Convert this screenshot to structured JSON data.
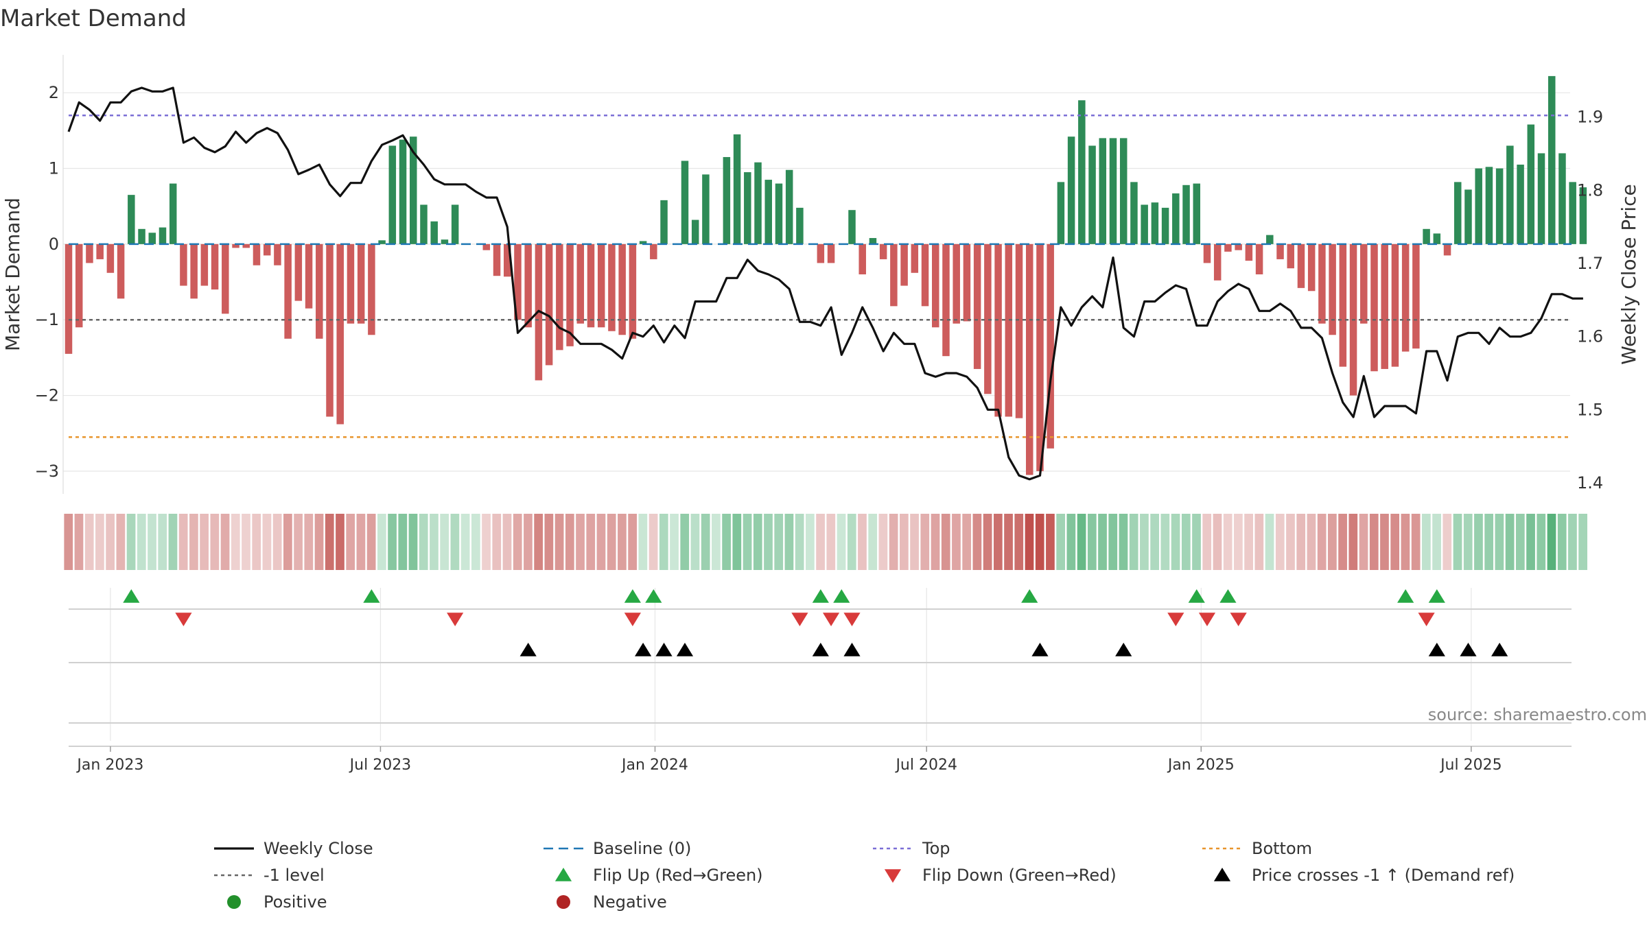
{
  "chart_data": {
    "type": "bar",
    "title": "Market Demand",
    "ylabel_left": "Market Demand",
    "ylabel_right": "Weekly Close Price",
    "source": "source: sharemaestro.com",
    "ylim_left": [
      -3.3,
      2.5
    ],
    "ylim_right": [
      1.385,
      1.985
    ],
    "yticks_left": [
      2,
      1,
      0,
      -1,
      -2,
      -3
    ],
    "ytick_labels_left": [
      "2",
      "1",
      "0",
      "−1",
      "−2",
      "−3"
    ],
    "yticks_right": [
      1.9,
      1.8,
      1.7,
      1.6,
      1.5,
      1.4
    ],
    "ytick_labels_right": [
      "1.9",
      "1.8",
      "1.7",
      "1.6",
      "1.5",
      "1.4"
    ],
    "x_start": "2022-12-04",
    "x_step_days": 7,
    "date_ticks": [
      {
        "label": "Jan 2023",
        "date": "2023-01-01"
      },
      {
        "label": "Jul 2023",
        "date": "2023-07-01"
      },
      {
        "label": "Jan 2024",
        "date": "2024-01-01"
      },
      {
        "label": "Jul 2024",
        "date": "2024-07-01"
      },
      {
        "label": "Jan 2025",
        "date": "2025-01-01"
      },
      {
        "label": "Jul 2025",
        "date": "2025-07-01"
      }
    ],
    "reference_lines": {
      "top": 1.7,
      "bottom": -2.55,
      "minus_one": -1,
      "baseline": 0
    },
    "demand": [
      -1.45,
      -1.1,
      -0.25,
      -0.2,
      -0.38,
      -0.72,
      0.65,
      0.2,
      0.15,
      0.22,
      0.8,
      -0.55,
      -0.72,
      -0.55,
      -0.6,
      -0.92,
      -0.05,
      -0.05,
      -0.28,
      -0.15,
      -0.28,
      -1.25,
      -0.75,
      -0.85,
      -1.25,
      -2.28,
      -2.38,
      -1.05,
      -1.05,
      -1.2,
      0.05,
      1.3,
      1.38,
      1.42,
      0.52,
      0.3,
      0.06,
      0.52,
      0,
      0,
      -0.08,
      -0.42,
      -0.43,
      -1,
      -1.1,
      -1.8,
      -1.6,
      -1.4,
      -1.35,
      -1.05,
      -1.1,
      -1.1,
      -1.15,
      -1.2,
      -1.25,
      0.04,
      -0.2,
      0.58,
      0,
      1.1,
      0.32,
      0.92,
      0,
      1.15,
      1.45,
      0.95,
      1.08,
      0.85,
      0.8,
      0.98,
      0.48,
      0,
      -0.25,
      -0.25,
      0,
      0.45,
      -0.4,
      0.08,
      -0.2,
      -0.82,
      -0.55,
      -0.38,
      -0.82,
      -1.1,
      -1.48,
      -1.05,
      -1.02,
      -1.65,
      -1.98,
      -2.28,
      -2.28,
      -2.3,
      -3.05,
      -3,
      -2.7,
      0.82,
      1.42,
      1.9,
      1.3,
      1.4,
      1.4,
      1.4,
      0.82,
      0.52,
      0.55,
      0.48,
      0.67,
      0.78,
      0.8,
      -0.25,
      -0.48,
      -0.1,
      -0.08,
      -0.22,
      -0.4,
      0.12,
      -0.2,
      -0.32,
      -0.58,
      -0.62,
      -1.05,
      -1.2,
      -1.62,
      -2,
      -1.05,
      -1.68,
      -1.65,
      -1.62,
      -1.42,
      -1.38,
      0.2,
      0.14,
      -0.15,
      0.82,
      0.72,
      1.0,
      1.02,
      1.0,
      1.3,
      1.05,
      1.58,
      1.2,
      2.22,
      1.2,
      0.82,
      0.75
    ],
    "close": [
      1.88,
      1.92,
      1.91,
      1.895,
      1.92,
      1.92,
      1.935,
      1.94,
      1.935,
      1.935,
      1.94,
      1.865,
      1.872,
      1.858,
      1.852,
      1.86,
      1.88,
      1.865,
      1.878,
      1.885,
      1.878,
      1.855,
      1.822,
      1.828,
      1.835,
      1.808,
      1.792,
      1.81,
      1.81,
      1.84,
      1.862,
      1.868,
      1.875,
      1.852,
      1.835,
      1.815,
      1.808,
      1.808,
      1.808,
      1.798,
      1.79,
      1.79,
      1.75,
      1.605,
      1.62,
      1.635,
      1.628,
      1.612,
      1.605,
      1.59,
      1.59,
      1.59,
      1.582,
      1.57,
      1.605,
      1.6,
      1.615,
      1.592,
      1.615,
      1.598,
      1.648,
      1.648,
      1.648,
      1.68,
      1.68,
      1.705,
      1.69,
      1.685,
      1.678,
      1.665,
      1.62,
      1.62,
      1.615,
      1.64,
      1.575,
      1.605,
      1.64,
      1.612,
      1.58,
      1.605,
      1.59,
      1.59,
      1.55,
      1.545,
      1.55,
      1.55,
      1.545,
      1.53,
      1.5,
      1.5,
      1.435,
      1.41,
      1.405,
      1.41,
      1.54,
      1.64,
      1.615,
      1.64,
      1.655,
      1.64,
      1.708,
      1.612,
      1.6,
      1.648,
      1.648,
      1.66,
      1.67,
      1.665,
      1.615,
      1.615,
      1.648,
      1.662,
      1.672,
      1.665,
      1.635,
      1.635,
      1.645,
      1.635,
      1.612,
      1.612,
      1.598,
      1.55,
      1.51,
      1.49,
      1.546,
      1.49,
      1.505,
      1.505,
      1.505,
      1.495,
      1.58,
      1.58,
      1.54,
      1.6,
      1.605,
      1.605,
      1.59,
      1.612,
      1.6,
      1.6,
      1.605,
      1.625,
      1.658,
      1.658,
      1.652,
      1.652
    ],
    "flip_up_weeks": [
      6,
      29,
      54,
      56,
      72,
      74,
      92,
      108,
      111,
      128,
      131
    ],
    "flip_down_weeks": [
      11,
      37,
      54,
      70,
      73,
      75,
      106,
      109,
      112,
      130
    ],
    "price_cross_weeks": [
      44,
      55,
      57,
      59,
      72,
      75,
      93,
      101,
      131,
      134,
      137
    ]
  },
  "legend": [
    {
      "key": "close",
      "label": "Weekly Close",
      "color": "#111111"
    },
    {
      "key": "baseline",
      "label": "Baseline (0)",
      "color": "#1f77b4"
    },
    {
      "key": "top",
      "label": "Top",
      "color": "#7b6fd6"
    },
    {
      "key": "bottom",
      "label": "Bottom",
      "color": "#e8952d"
    },
    {
      "key": "minus_one",
      "label": "-1 level",
      "color": "#666666"
    },
    {
      "key": "flip_up",
      "label": "Flip Up (Red→Green)",
      "color": "#26a843"
    },
    {
      "key": "flip_down",
      "label": "Flip Down (Green→Red)",
      "color": "#d83a3a"
    },
    {
      "key": "price_cross",
      "label": "Price crosses -1 ↑ (Demand ref)",
      "color": "#000000"
    },
    {
      "key": "positive",
      "label": "Positive",
      "color": "#22902b"
    },
    {
      "key": "negative",
      "label": "Negative",
      "color": "#b02424"
    }
  ],
  "colors": {
    "positive_bar": "#2e8b57",
    "negative_bar": "#cd5c5c",
    "grid": "#e6e6e6",
    "axis_text": "#333333"
  }
}
